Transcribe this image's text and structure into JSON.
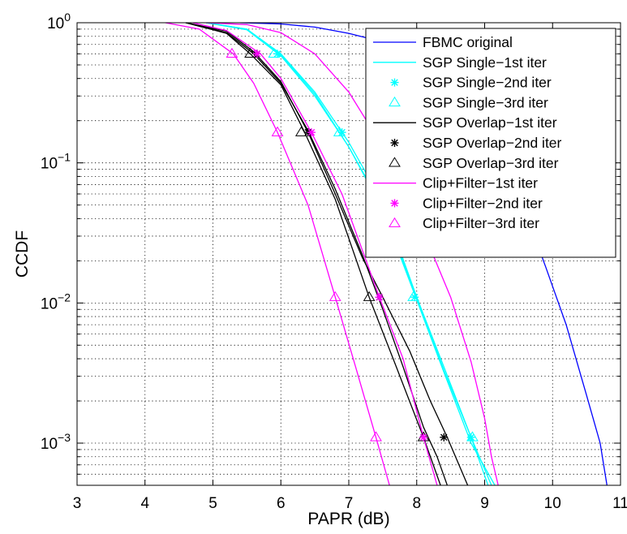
{
  "chart_data": {
    "type": "line",
    "xlabel": "PAPR (dB)",
    "ylabel": "CCDF",
    "xlim": [
      3,
      11
    ],
    "ylim": [
      0.0005,
      1
    ],
    "yscale": "log",
    "grid": true,
    "legend_position": "top-right",
    "x_ticks": [
      3,
      4,
      5,
      6,
      7,
      8,
      9,
      10,
      11
    ],
    "y_ticks": [
      {
        "value": 1,
        "base": "10",
        "exp": "0"
      },
      {
        "value": 0.1,
        "base": "10",
        "exp": "−1"
      },
      {
        "value": 0.01,
        "base": "10",
        "exp": "−2"
      },
      {
        "value": 0.001,
        "base": "10",
        "exp": "−3"
      }
    ],
    "series": [
      {
        "name": "FBMC original",
        "color": "#0000ff",
        "style": "line",
        "points": [
          [
            5.4,
            1
          ],
          [
            6.0,
            0.98
          ],
          [
            6.5,
            0.93
          ],
          [
            7.0,
            0.84
          ],
          [
            7.5,
            0.73
          ],
          [
            8.0,
            0.56
          ],
          [
            8.5,
            0.37
          ],
          [
            9.0,
            0.2
          ],
          [
            9.3,
            0.1
          ],
          [
            9.6,
            0.045
          ],
          [
            9.9,
            0.018
          ],
          [
            10.2,
            0.007
          ],
          [
            10.5,
            0.0022
          ],
          [
            10.7,
            0.001
          ],
          [
            10.8,
            0.0005
          ]
        ]
      },
      {
        "name": "SGP Single−1st iter",
        "color": "#00ffff",
        "style": "line",
        "points": [
          [
            4.9,
            1
          ],
          [
            5.5,
            0.9
          ],
          [
            6.0,
            0.6
          ],
          [
            6.5,
            0.32
          ],
          [
            7.0,
            0.14
          ],
          [
            7.5,
            0.052
          ],
          [
            8.0,
            0.011
          ],
          [
            8.4,
            0.0035
          ],
          [
            8.8,
            0.0011
          ],
          [
            9.05,
            0.0005
          ]
        ]
      },
      {
        "name": "SGP Single−2nd iter",
        "color": "#00ffff",
        "style": "line",
        "marker": "star",
        "points": [
          [
            4.9,
            1
          ],
          [
            5.5,
            0.9
          ],
          [
            6.0,
            0.59
          ],
          [
            6.5,
            0.31
          ],
          [
            7.0,
            0.13
          ],
          [
            7.5,
            0.048
          ],
          [
            8.0,
            0.011
          ],
          [
            8.4,
            0.0033
          ],
          [
            8.8,
            0.0011
          ],
          [
            9.1,
            0.0005
          ]
        ],
        "marker_points": [
          [
            5.95,
            0.6
          ],
          [
            6.9,
            0.165
          ],
          [
            7.97,
            0.011
          ],
          [
            8.8,
            0.0011
          ]
        ]
      },
      {
        "name": "SGP Single−3rd iter",
        "color": "#00ffff",
        "style": "line",
        "marker": "triangle",
        "points": [
          [
            4.9,
            1
          ],
          [
            5.5,
            0.89
          ],
          [
            6.0,
            0.58
          ],
          [
            6.5,
            0.3
          ],
          [
            7.0,
            0.13
          ],
          [
            7.5,
            0.046
          ],
          [
            8.0,
            0.0105
          ],
          [
            8.4,
            0.0032
          ],
          [
            8.8,
            0.001
          ],
          [
            9.15,
            0.0005
          ]
        ],
        "marker_points": [
          [
            5.9,
            0.6
          ],
          [
            6.86,
            0.165
          ],
          [
            7.95,
            0.011
          ],
          [
            8.82,
            0.0011
          ]
        ]
      },
      {
        "name": "SGP Overlap−1st iter",
        "color": "#000000",
        "style": "line",
        "points": [
          [
            4.6,
            1
          ],
          [
            5.2,
            0.85
          ],
          [
            5.6,
            0.6
          ],
          [
            6.0,
            0.37
          ],
          [
            6.4,
            0.17
          ],
          [
            6.8,
            0.065
          ],
          [
            7.2,
            0.022
          ],
          [
            7.5,
            0.009
          ],
          [
            7.8,
            0.0035
          ],
          [
            8.1,
            0.0013
          ],
          [
            8.3,
            0.0008
          ],
          [
            8.45,
            0.0005
          ]
        ]
      },
      {
        "name": "SGP Overlap−2nd iter",
        "color": "#000000",
        "style": "line",
        "marker": "star",
        "points": [
          [
            4.6,
            1
          ],
          [
            5.2,
            0.87
          ],
          [
            5.6,
            0.62
          ],
          [
            6.0,
            0.38
          ],
          [
            6.4,
            0.165
          ],
          [
            6.8,
            0.06
          ],
          [
            7.2,
            0.021
          ],
          [
            7.5,
            0.011
          ],
          [
            7.9,
            0.0045
          ],
          [
            8.2,
            0.002
          ],
          [
            8.45,
            0.0011
          ],
          [
            8.75,
            0.0005
          ]
        ],
        "marker_points": [
          [
            5.65,
            0.6
          ],
          [
            6.4,
            0.165
          ],
          [
            7.45,
            0.011
          ],
          [
            8.4,
            0.0011
          ]
        ]
      },
      {
        "name": "SGP Overlap−3rd iter",
        "color": "#000000",
        "style": "line",
        "marker": "triangle",
        "points": [
          [
            4.6,
            1
          ],
          [
            5.2,
            0.84
          ],
          [
            5.55,
            0.6
          ],
          [
            6.0,
            0.36
          ],
          [
            6.35,
            0.165
          ],
          [
            6.8,
            0.055
          ],
          [
            7.3,
            0.011
          ],
          [
            7.7,
            0.0035
          ],
          [
            8.1,
            0.0011
          ],
          [
            8.35,
            0.0005
          ]
        ],
        "marker_points": [
          [
            5.55,
            0.6
          ],
          [
            6.3,
            0.165
          ],
          [
            7.3,
            0.011
          ],
          [
            8.1,
            0.0011
          ]
        ]
      },
      {
        "name": "Clip+Filter−1st iter",
        "color": "#ff00ff",
        "style": "line",
        "points": [
          [
            4.9,
            1
          ],
          [
            5.5,
            0.97
          ],
          [
            6.0,
            0.85
          ],
          [
            6.5,
            0.6
          ],
          [
            7.0,
            0.32
          ],
          [
            7.5,
            0.13
          ],
          [
            8.0,
            0.042
          ],
          [
            8.5,
            0.011
          ],
          [
            8.8,
            0.0038
          ],
          [
            9.0,
            0.0015
          ],
          [
            9.1,
            0.0008
          ],
          [
            9.2,
            0.0005
          ]
        ]
      },
      {
        "name": "Clip+Filter−2nd iter",
        "color": "#ff00ff",
        "style": "line",
        "marker": "star",
        "points": [
          [
            4.7,
            1
          ],
          [
            5.2,
            0.88
          ],
          [
            5.7,
            0.6
          ],
          [
            6.0,
            0.4
          ],
          [
            6.45,
            0.165
          ],
          [
            6.9,
            0.06
          ],
          [
            7.45,
            0.011
          ],
          [
            7.8,
            0.004
          ],
          [
            8.1,
            0.0011
          ],
          [
            8.3,
            0.0005
          ]
        ],
        "marker_points": [
          [
            5.65,
            0.6
          ],
          [
            6.45,
            0.165
          ],
          [
            7.45,
            0.011
          ],
          [
            8.1,
            0.0011
          ]
        ]
      },
      {
        "name": "Clip+Filter−3rd iter",
        "color": "#ff00ff",
        "style": "line",
        "marker": "triangle",
        "points": [
          [
            4.3,
            1
          ],
          [
            4.8,
            0.9
          ],
          [
            5.3,
            0.6
          ],
          [
            5.6,
            0.37
          ],
          [
            5.95,
            0.165
          ],
          [
            6.4,
            0.05
          ],
          [
            6.8,
            0.011
          ],
          [
            7.1,
            0.0035
          ],
          [
            7.4,
            0.0011
          ],
          [
            7.6,
            0.0005
          ]
        ],
        "marker_points": [
          [
            5.28,
            0.6
          ],
          [
            5.95,
            0.165
          ],
          [
            6.8,
            0.011
          ],
          [
            7.4,
            0.0011
          ]
        ]
      }
    ]
  }
}
